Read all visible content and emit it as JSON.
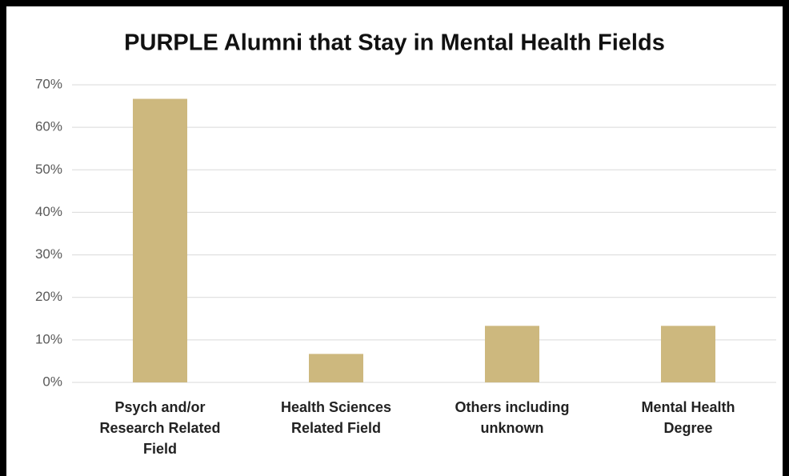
{
  "chart_data": {
    "type": "bar",
    "title": "PURPLE Alumni that Stay in Mental Health Fields",
    "categories": [
      "Psych and/or Research Related Field",
      "Health Sciences Related Field",
      "Others including unknown",
      "Mental Health Degree"
    ],
    "values": [
      66.7,
      6.7,
      13.3,
      13.3
    ],
    "color": "#cdb87e",
    "ylim": [
      0,
      70
    ],
    "yticks": [
      {
        "value": 0,
        "label": "0%"
      },
      {
        "value": 10,
        "label": "10%"
      },
      {
        "value": 20,
        "label": "20%"
      },
      {
        "value": 30,
        "label": "30%"
      },
      {
        "value": 40,
        "label": "40%"
      },
      {
        "value": 50,
        "label": "50%"
      },
      {
        "value": 60,
        "label": "60%"
      },
      {
        "value": 70,
        "label": "70%"
      }
    ],
    "grid": true
  }
}
